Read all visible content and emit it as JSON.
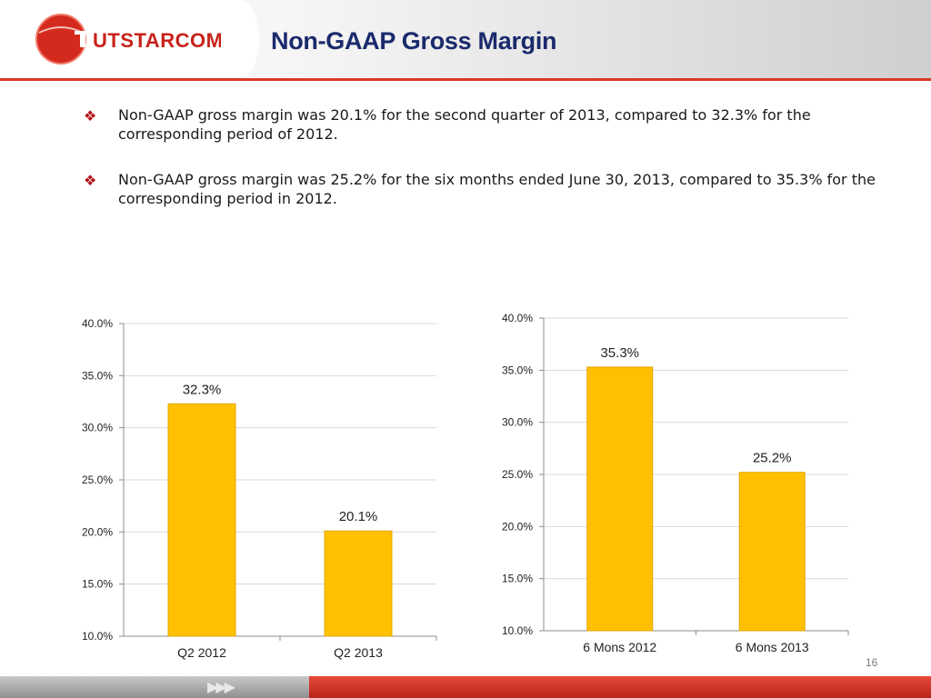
{
  "header": {
    "logo_text": "UTSTARCOM",
    "title": "Non-GAAP Gross Margin"
  },
  "bullets": [
    "Non-GAAP gross margin was 20.1% for the second quarter of  2013, compared to 32.3% for the corresponding period of 2012.",
    "Non-GAAP gross margin was 25.2% for the six months ended June 30, 2013, compared to 35.3% for the corresponding period in 2012."
  ],
  "page_number": "16",
  "colors": {
    "bar": "#FFC000",
    "bar_edge": "#E0A800",
    "title": "#1A2A6C",
    "accent": "#D83A2A",
    "bullet_mark": "#B5121B"
  },
  "chart_data": [
    {
      "type": "bar",
      "categories": [
        "Q2 2012",
        "Q2 2013"
      ],
      "values": [
        32.3,
        20.1
      ],
      "data_labels": [
        "32.3%",
        "20.1%"
      ],
      "yticks": [
        "10.0%",
        "15.0%",
        "20.0%",
        "25.0%",
        "30.0%",
        "35.0%",
        "40.0%"
      ],
      "ylim": [
        10,
        40
      ],
      "grid": true,
      "title": "",
      "xlabel": "",
      "ylabel": ""
    },
    {
      "type": "bar",
      "categories": [
        "6 Mons 2012",
        "6 Mons 2013"
      ],
      "values": [
        35.3,
        25.2
      ],
      "data_labels": [
        "35.3%",
        "25.2%"
      ],
      "yticks": [
        "10.0%",
        "15.0%",
        "20.0%",
        "25.0%",
        "30.0%",
        "35.0%",
        "40.0%"
      ],
      "ylim": [
        10,
        40
      ],
      "grid": true,
      "title": "",
      "xlabel": "",
      "ylabel": ""
    }
  ]
}
